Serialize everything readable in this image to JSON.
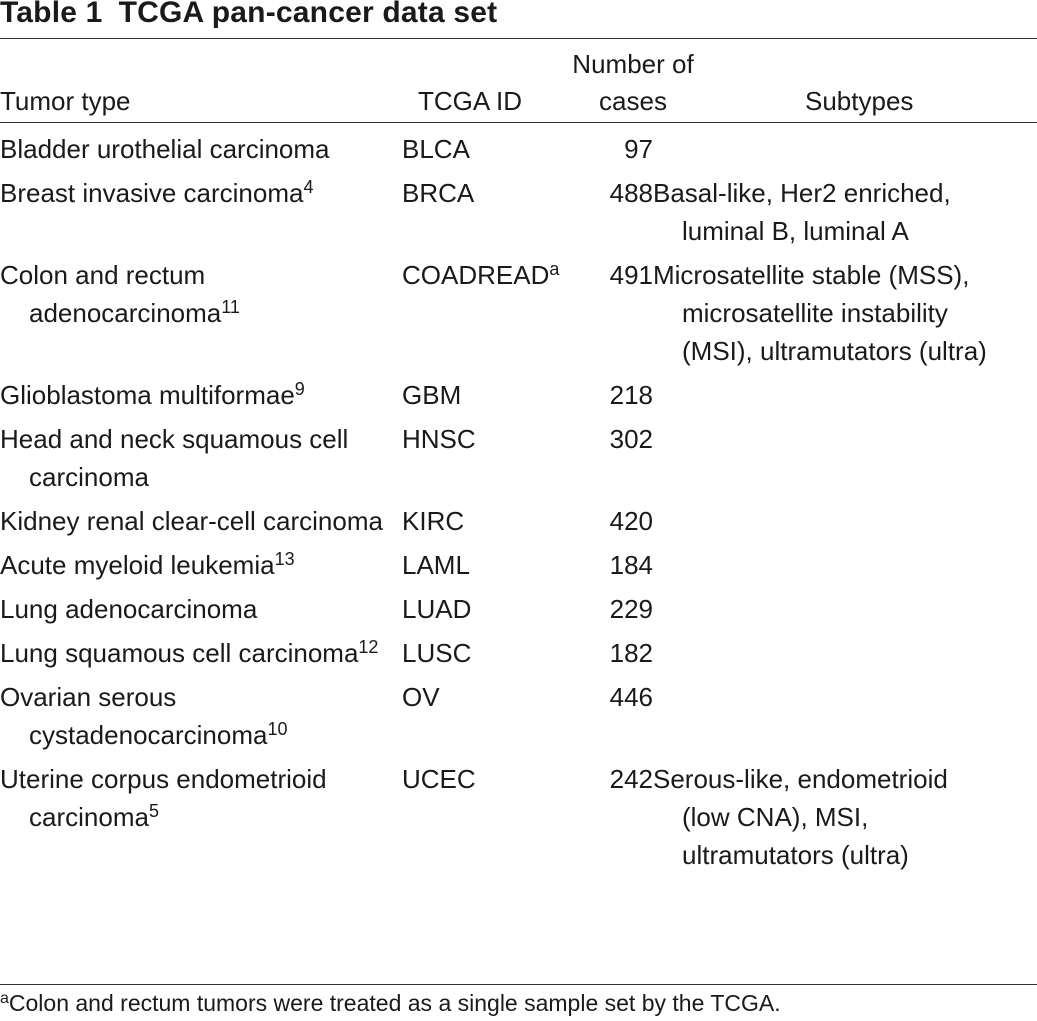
{
  "table": {
    "number": "Table 1",
    "title": "TCGA pan-cancer data set",
    "headers": {
      "tumor_type": "Tumor type",
      "tcga_id": "TCGA ID",
      "cases_line1": "Number of",
      "cases_line2": "cases",
      "subtypes": "Subtypes"
    },
    "rows": [
      {
        "tumor": "Bladder urothelial carcinoma",
        "tumor_ref": "",
        "id": "BLCA",
        "id_ref": "",
        "cases": "97",
        "subtypes": ""
      },
      {
        "tumor": "Breast invasive carcinoma",
        "tumor_ref": "4",
        "id": "BRCA",
        "id_ref": "",
        "cases": "488",
        "subtypes": "Basal-like, Her2 enriched, luminal B, luminal A"
      },
      {
        "tumor": "Colon and rectum adenocarcinoma",
        "tumor_ref": "11",
        "id": "COADREAD",
        "id_ref": "a",
        "cases": "491",
        "subtypes": "Microsatellite stable (MSS), microsatellite instability (MSI), ultramutators (ultra)"
      },
      {
        "tumor": "Glioblastoma multiformae",
        "tumor_ref": "9",
        "id": "GBM",
        "id_ref": "",
        "cases": "218",
        "subtypes": ""
      },
      {
        "tumor": "Head and neck squamous cell carcinoma",
        "tumor_ref": "",
        "id": "HNSC",
        "id_ref": "",
        "cases": "302",
        "subtypes": ""
      },
      {
        "tumor": "Kidney renal clear-cell carcinoma",
        "tumor_ref": "",
        "id": "KIRC",
        "id_ref": "",
        "cases": "420",
        "subtypes": ""
      },
      {
        "tumor": "Acute myeloid leukemia",
        "tumor_ref": "13",
        "id": "LAML",
        "id_ref": "",
        "cases": "184",
        "subtypes": ""
      },
      {
        "tumor": "Lung adenocarcinoma",
        "tumor_ref": "",
        "id": "LUAD",
        "id_ref": "",
        "cases": "229",
        "subtypes": ""
      },
      {
        "tumor": "Lung squamous cell carcinoma",
        "tumor_ref": "12",
        "id": "LUSC",
        "id_ref": "",
        "cases": "182",
        "subtypes": ""
      },
      {
        "tumor": "Ovarian serous cystadenocarcinoma",
        "tumor_ref": "10",
        "id": "OV",
        "id_ref": "",
        "cases": "446",
        "subtypes": ""
      },
      {
        "tumor": "Uterine corpus endometrioid carcinoma",
        "tumor_ref": "5",
        "id": "UCEC",
        "id_ref": "",
        "cases": "242",
        "subtypes": "Serous-like, endometrioid (low CNA), MSI, ultramutators (ultra)"
      }
    ],
    "footnote": {
      "mark": "a",
      "text": "Colon and rectum tumors were treated as a single sample set by the TCGA."
    }
  }
}
